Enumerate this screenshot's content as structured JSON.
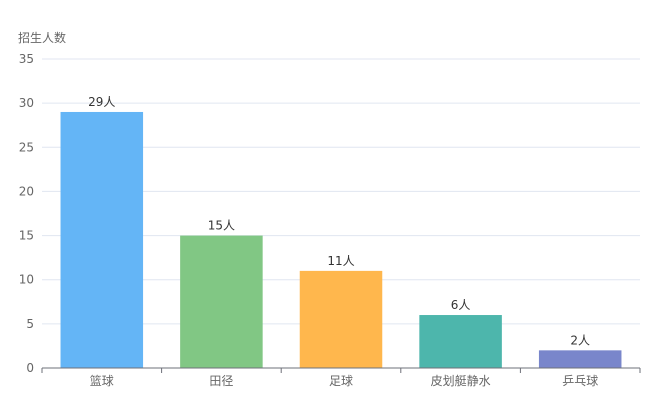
{
  "chart_data": {
    "type": "bar",
    "ylabel": "招生人数",
    "categories": [
      "篮球",
      "田径",
      "足球",
      "皮划艇静水",
      "乒乓球"
    ],
    "values": [
      29,
      15,
      11,
      6,
      2
    ],
    "data_labels": [
      "29人",
      "15人",
      "11人",
      "6人",
      "2人"
    ],
    "y_ticks": [
      0,
      5,
      10,
      15,
      20,
      25,
      30,
      35
    ],
    "ylim": [
      0,
      35
    ],
    "colors": [
      "#64b5f6",
      "#81c784",
      "#ffb74d",
      "#4db6ac",
      "#7986cb"
    ],
    "grid": true
  }
}
